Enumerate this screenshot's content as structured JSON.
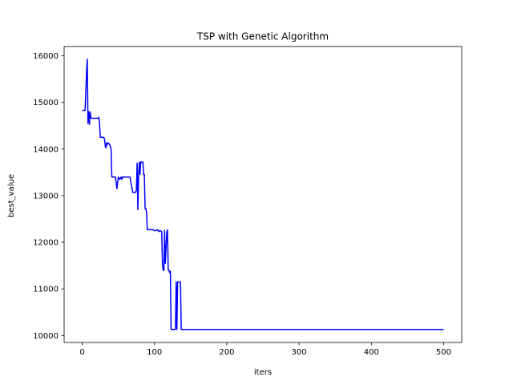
{
  "chart_data": {
    "type": "line",
    "title": "TSP with Genetic Algorithm",
    "xlabel": "iters",
    "ylabel": "best_value",
    "xlim": [
      -25,
      525
    ],
    "ylim": [
      9850,
      16200
    ],
    "xticks": [
      0,
      100,
      200,
      300,
      400,
      500
    ],
    "yticks": [
      10000,
      11000,
      12000,
      13000,
      14000,
      15000,
      16000
    ],
    "grid": false,
    "series": [
      {
        "color": "#0000ff",
        "x": [
          0,
          4,
          5,
          6,
          7,
          8,
          9,
          10,
          11,
          12,
          13,
          15,
          18,
          20,
          22,
          23,
          24,
          25,
          26,
          30,
          31,
          32,
          33,
          34,
          35,
          36,
          38,
          40,
          41,
          44,
          46,
          48,
          50,
          52,
          54,
          55,
          56,
          58,
          62,
          66,
          70,
          72,
          74,
          75,
          76,
          77,
          78,
          79,
          80,
          81,
          82,
          83,
          84,
          85,
          86,
          87,
          88,
          89,
          90,
          94,
          96,
          98,
          100,
          102,
          104,
          106,
          108,
          110,
          111,
          112,
          113,
          114,
          115,
          117,
          118,
          119,
          120,
          121,
          122,
          123,
          124,
          125,
          126,
          127,
          128,
          129,
          130,
          131,
          132,
          133,
          134,
          135,
          136,
          137,
          140,
          150,
          200,
          300,
          400,
          500
        ],
        "y": [
          14830,
          14830,
          15200,
          15650,
          15930,
          14550,
          14800,
          14530,
          14800,
          14670,
          14660,
          14660,
          14660,
          14660,
          14660,
          14680,
          14550,
          14250,
          14250,
          14250,
          14200,
          14050,
          14030,
          14140,
          14100,
          14130,
          14100,
          14000,
          13400,
          13400,
          13400,
          13150,
          13400,
          13350,
          13400,
          13350,
          13400,
          13400,
          13400,
          13400,
          13070,
          13070,
          13070,
          13130,
          13700,
          12700,
          13400,
          13720,
          13460,
          13720,
          13720,
          13720,
          13720,
          13450,
          13450,
          12720,
          12720,
          12650,
          12270,
          12270,
          12270,
          12270,
          12250,
          12250,
          12270,
          12230,
          12250,
          12230,
          11550,
          11400,
          11400,
          12250,
          11550,
          12200,
          12270,
          11400,
          11400,
          11350,
          11380,
          10130,
          10130,
          10130,
          10130,
          10130,
          10130,
          10130,
          11150,
          10130,
          11150,
          11150,
          11150,
          11150,
          11150,
          10130,
          10130,
          10130,
          10130,
          10130,
          10130,
          10130
        ]
      }
    ]
  }
}
